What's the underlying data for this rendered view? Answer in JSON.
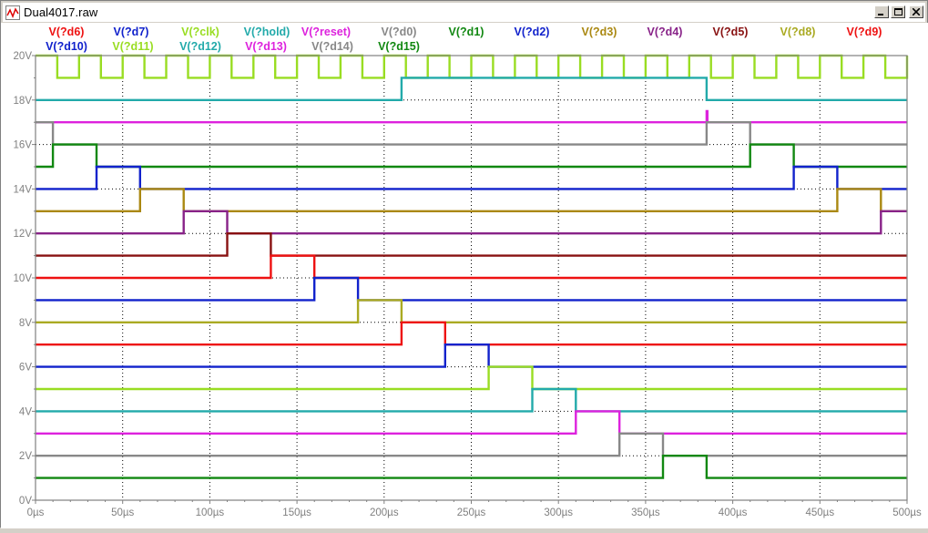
{
  "window": {
    "title": "Dual4017.raw"
  },
  "colors": {
    "axis": "#808080",
    "grid": "#000000",
    "tick_label": "#808080"
  },
  "chart_data": {
    "type": "line",
    "step": true,
    "xlabel": "",
    "ylabel": "",
    "xlim": [
      0,
      500
    ],
    "ylim": [
      0,
      20
    ],
    "x_unit": "µs",
    "y_unit": "V",
    "grid": true,
    "x_ticks": [
      "0µs",
      "50µs",
      "100µs",
      "150µs",
      "200µs",
      "250µs",
      "300µs",
      "350µs",
      "400µs",
      "450µs",
      "500µs"
    ],
    "y_ticks": [
      "0V",
      "2V",
      "4V",
      "6V",
      "8V",
      "10V",
      "12V",
      "14V",
      "16V",
      "18V",
      "20V"
    ],
    "legend_rows": [
      [
        "V(?d6)",
        "V(?d7)",
        "V(?clk)",
        "V(?hold)",
        "V(?reset)",
        "V(?d0)",
        "V(?d1)",
        "V(?d2)",
        "V(?d3)",
        "V(?d4)",
        "V(?d5)",
        "V(?d8)",
        "V(?d9)"
      ],
      [
        "V(?d10)",
        "V(?d11)",
        "V(?d12)",
        "V(?d13)",
        "V(?d14)",
        "V(?d15)"
      ]
    ],
    "series": [
      {
        "name": "V(?clk)",
        "color": "#99dd22",
        "base": 19,
        "high": 20,
        "clock": true,
        "period": 25,
        "high_duration": 12.5,
        "x_start": 0
      },
      {
        "name": "V(?hold)",
        "color": "#22aaaa",
        "base": 18,
        "high": 19,
        "pulses": [
          [
            210,
            385
          ]
        ]
      },
      {
        "name": "V(?reset)",
        "color": "#dd22dd",
        "base": 17,
        "high": 17.5,
        "pulses": [
          [
            385,
            385.5
          ]
        ]
      },
      {
        "name": "V(?d0)",
        "color": "#888888",
        "base": 16,
        "high": 17,
        "pulses": [
          [
            0,
            10
          ],
          [
            385,
            410
          ]
        ]
      },
      {
        "name": "V(?d1)",
        "color": "#118811",
        "base": 15,
        "high": 16,
        "pulses": [
          [
            10,
            35
          ],
          [
            410,
            435
          ]
        ]
      },
      {
        "name": "V(?d2)",
        "color": "#1122cc",
        "base": 14,
        "high": 15,
        "pulses": [
          [
            35,
            60
          ],
          [
            435,
            460
          ]
        ]
      },
      {
        "name": "V(?d3)",
        "color": "#aa8811",
        "base": 13,
        "high": 14,
        "pulses": [
          [
            60,
            85
          ],
          [
            460,
            485
          ]
        ]
      },
      {
        "name": "V(?d4)",
        "color": "#882288",
        "base": 12,
        "high": 13,
        "pulses": [
          [
            85,
            110
          ],
          [
            485,
            500
          ]
        ]
      },
      {
        "name": "V(?d5)",
        "color": "#881111",
        "base": 11,
        "high": 12,
        "pulses": [
          [
            110,
            135
          ]
        ]
      },
      {
        "name": "V(?d6)",
        "color": "#ee1111",
        "base": 10,
        "high": 11,
        "pulses": [
          [
            135,
            160
          ]
        ]
      },
      {
        "name": "V(?d7)",
        "color": "#1122cc",
        "base": 9,
        "high": 10,
        "pulses": [
          [
            160,
            185
          ]
        ]
      },
      {
        "name": "V(?d8)",
        "color": "#aaaa22",
        "base": 8,
        "high": 9,
        "pulses": [
          [
            185,
            210
          ]
        ]
      },
      {
        "name": "V(?d9)",
        "color": "#ee1111",
        "base": 7,
        "high": 8,
        "pulses": [
          [
            210,
            235
          ]
        ]
      },
      {
        "name": "V(?d10)",
        "color": "#1122cc",
        "base": 6,
        "high": 7,
        "pulses": [
          [
            235,
            260
          ]
        ]
      },
      {
        "name": "V(?d11)",
        "color": "#99dd22",
        "base": 5,
        "high": 6,
        "pulses": [
          [
            260,
            285
          ]
        ]
      },
      {
        "name": "V(?d12)",
        "color": "#22aaaa",
        "base": 4,
        "high": 5,
        "pulses": [
          [
            285,
            310
          ]
        ]
      },
      {
        "name": "V(?d13)",
        "color": "#dd22dd",
        "base": 3,
        "high": 4,
        "pulses": [
          [
            310,
            335
          ]
        ]
      },
      {
        "name": "V(?d14)",
        "color": "#888888",
        "base": 2,
        "high": 3,
        "pulses": [
          [
            335,
            360
          ]
        ]
      },
      {
        "name": "V(?d15)",
        "color": "#118811",
        "base": 1,
        "high": 2,
        "pulses": [
          [
            360,
            385
          ]
        ]
      }
    ]
  }
}
